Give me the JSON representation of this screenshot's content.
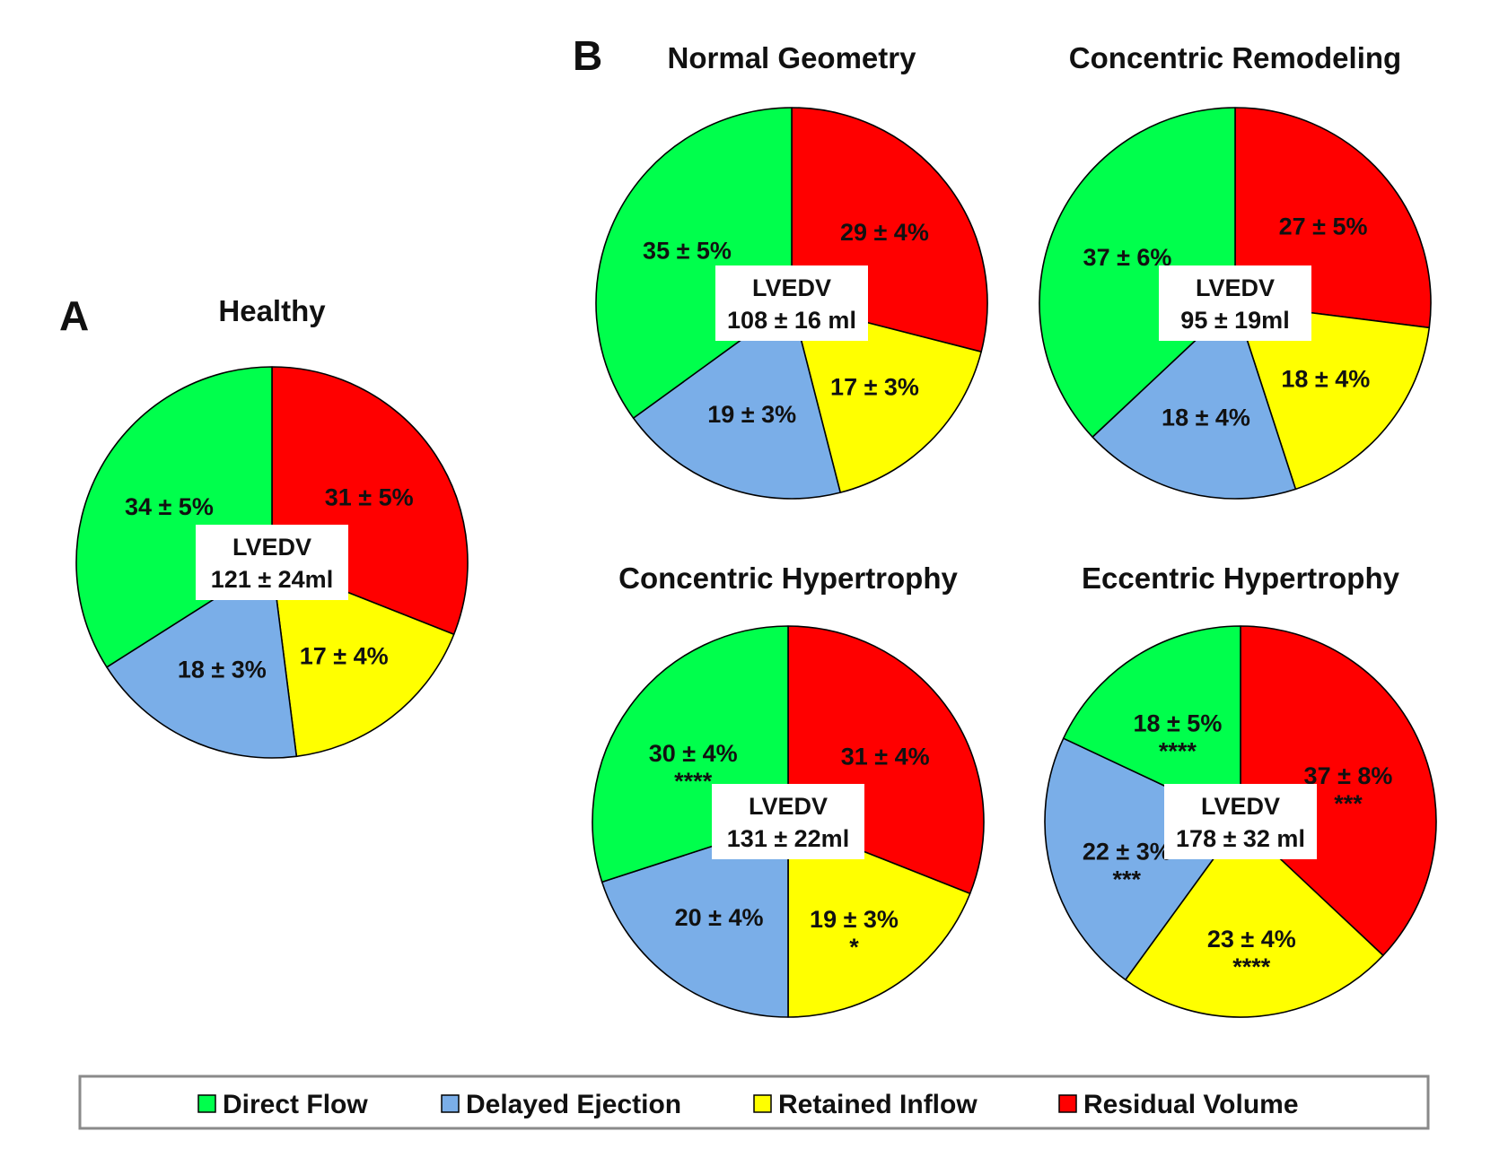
{
  "panel_labels": {
    "a": "A",
    "b": "B"
  },
  "center_label_heading": "LVEDV",
  "colors": {
    "Direct Flow": "#00ff4c",
    "Delayed Ejection": "#7aaee8",
    "Retained Inflow": "#ffff00",
    "Residual Volume": "#ff0000"
  },
  "legend": {
    "items": [
      {
        "name": "Direct Flow"
      },
      {
        "name": "Delayed Ejection"
      },
      {
        "name": "Retained Inflow"
      },
      {
        "name": "Residual Volume"
      }
    ]
  },
  "chart_data": [
    {
      "type": "pie",
      "panel": "A",
      "title": "Healthy",
      "center_value": "121 ± 24ml",
      "slices": [
        {
          "name": "Residual Volume",
          "value": 31,
          "label": "31 ± 5%",
          "sig": ""
        },
        {
          "name": "Retained Inflow",
          "value": 17,
          "label": "17 ± 4%",
          "sig": ""
        },
        {
          "name": "Delayed Ejection",
          "value": 18,
          "label": "18 ± 3%",
          "sig": ""
        },
        {
          "name": "Direct Flow",
          "value": 34,
          "label": "34 ± 5%",
          "sig": ""
        }
      ]
    },
    {
      "type": "pie",
      "panel": "B",
      "title": "Normal Geometry",
      "center_value": "108 ± 16 ml",
      "slices": [
        {
          "name": "Residual Volume",
          "value": 29,
          "label": "29 ± 4%",
          "sig": ""
        },
        {
          "name": "Retained Inflow",
          "value": 17,
          "label": "17 ± 3%",
          "sig": ""
        },
        {
          "name": "Delayed Ejection",
          "value": 19,
          "label": "19 ± 3%",
          "sig": ""
        },
        {
          "name": "Direct Flow",
          "value": 35,
          "label": "35 ± 5%",
          "sig": ""
        }
      ]
    },
    {
      "type": "pie",
      "panel": "B",
      "title": "Concentric Remodeling",
      "center_value": "95 ± 19ml",
      "slices": [
        {
          "name": "Residual Volume",
          "value": 27,
          "label": "27 ± 5%",
          "sig": ""
        },
        {
          "name": "Retained Inflow",
          "value": 18,
          "label": "18 ± 4%",
          "sig": ""
        },
        {
          "name": "Delayed Ejection",
          "value": 18,
          "label": "18 ± 4%",
          "sig": ""
        },
        {
          "name": "Direct Flow",
          "value": 37,
          "label": "37 ± 6%",
          "sig": ""
        }
      ]
    },
    {
      "type": "pie",
      "panel": "B",
      "title": "Concentric Hypertrophy",
      "center_value": "131 ± 22ml",
      "slices": [
        {
          "name": "Residual Volume",
          "value": 31,
          "label": "31 ± 4%",
          "sig": ""
        },
        {
          "name": "Retained Inflow",
          "value": 19,
          "label": "19 ± 3%",
          "sig": "*"
        },
        {
          "name": "Delayed Ejection",
          "value": 20,
          "label": "20 ± 4%",
          "sig": ""
        },
        {
          "name": "Direct Flow",
          "value": 30,
          "label": "30 ± 4%",
          "sig": "****"
        }
      ]
    },
    {
      "type": "pie",
      "panel": "B",
      "title": "Eccentric Hypertrophy",
      "center_value": "178 ± 32 ml",
      "slices": [
        {
          "name": "Residual Volume",
          "value": 37,
          "label": "37 ± 8%",
          "sig": "***"
        },
        {
          "name": "Retained Inflow",
          "value": 23,
          "label": "23 ± 4%",
          "sig": "****"
        },
        {
          "name": "Delayed Ejection",
          "value": 22,
          "label": "22 ± 3%",
          "sig": "***"
        },
        {
          "name": "Direct Flow",
          "value": 18,
          "label": "18 ± 5%",
          "sig": "****"
        }
      ]
    }
  ]
}
